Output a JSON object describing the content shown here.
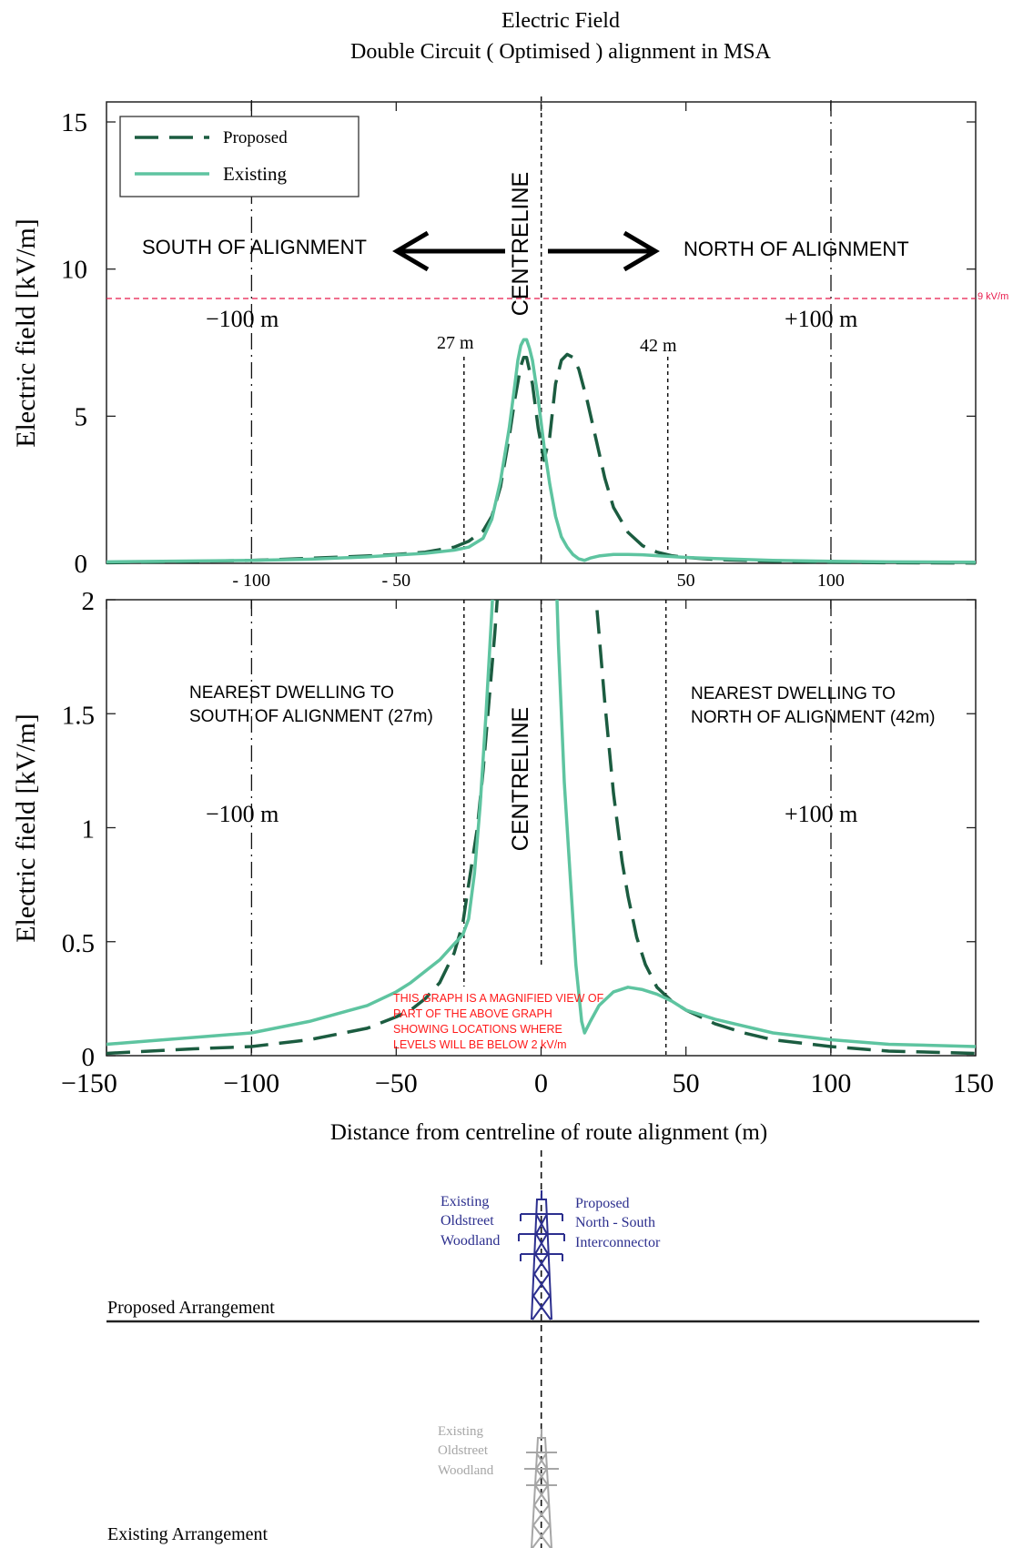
{
  "title": "Electric Field",
  "subtitle": "Double Circuit ( Optimised ) alignment in MSA",
  "colors": {
    "proposed": "#1b5c40",
    "existing": "#5ec4a0",
    "threshold": "#e8194b",
    "annotation_red": "#ff1a1a",
    "tower_blue": "#2c2f8e",
    "tower_grey": "#a6a6a6"
  },
  "icons": {
    "proposed_tower": "transmission-tower-icon",
    "existing_tower": "transmission-tower-icon"
  },
  "chart_data": [
    {
      "type": "line",
      "ylabel": "Electric field [kV/m]",
      "xlim": [
        -150,
        150
      ],
      "ylim": [
        0,
        16
      ],
      "y_ticks": [
        "0",
        "5",
        "10",
        "15"
      ],
      "x_ticks": [
        "- 100",
        "- 50",
        "50",
        "100"
      ],
      "grid": false,
      "legend": "top-left",
      "series": [
        {
          "name": "Proposed",
          "style": "dashed",
          "x": [
            -150,
            -100,
            -80,
            -60,
            -50,
            -40,
            -30,
            -25,
            -20,
            -17,
            -14,
            -11,
            -9,
            -7,
            -6,
            -5,
            -3,
            -1,
            1,
            3,
            5,
            7,
            9,
            11,
            13,
            16,
            19,
            22,
            25,
            30,
            35,
            40,
            45,
            50,
            60,
            80,
            100,
            120,
            150
          ],
          "y": [
            0.02,
            0.1,
            0.17,
            0.25,
            0.3,
            0.38,
            0.55,
            0.75,
            1.1,
            1.6,
            2.6,
            4.3,
            5.6,
            6.7,
            7.0,
            7.0,
            6.1,
            4.6,
            3.5,
            4.3,
            6.1,
            6.9,
            7.1,
            7.0,
            6.6,
            5.5,
            4.2,
            2.9,
            1.9,
            1.05,
            0.6,
            0.38,
            0.26,
            0.2,
            0.13,
            0.07,
            0.04,
            0.02,
            0.01
          ]
        },
        {
          "name": "Existing",
          "style": "solid",
          "x": [
            -150,
            -100,
            -80,
            -60,
            -50,
            -40,
            -30,
            -25,
            -20,
            -17,
            -14,
            -11,
            -9,
            -8,
            -7,
            -6,
            -5,
            -4,
            -3,
            -1,
            1,
            3,
            5,
            7,
            9,
            11,
            13,
            15,
            17,
            20,
            25,
            30,
            35,
            40,
            50,
            60,
            80,
            100,
            120,
            150
          ],
          "y": [
            0.05,
            0.1,
            0.14,
            0.22,
            0.28,
            0.34,
            0.45,
            0.55,
            0.85,
            1.5,
            2.8,
            4.6,
            6.1,
            6.9,
            7.4,
            7.6,
            7.6,
            7.3,
            6.9,
            5.6,
            4.0,
            2.7,
            1.6,
            0.9,
            0.55,
            0.3,
            0.15,
            0.1,
            0.18,
            0.25,
            0.3,
            0.3,
            0.29,
            0.26,
            0.2,
            0.16,
            0.1,
            0.07,
            0.05,
            0.04
          ]
        }
      ],
      "threshold": {
        "value": 9,
        "label": "9 kV/m"
      },
      "annotations": {
        "centreline": "CENTRELINE",
        "south": "SOUTH OF ALIGNMENT",
        "north": "NORTH OF ALIGNMENT",
        "left_100": "−100  m",
        "right_100": "+100  m",
        "dist_27": "27 m",
        "dist_42": "42 m"
      }
    },
    {
      "type": "line",
      "ylabel": "Electric field [kV/m]",
      "xlabel": "Distance from centreline of route alignment (m)",
      "xlim": [
        -150,
        150
      ],
      "ylim": [
        0,
        2
      ],
      "y_ticks": [
        "0",
        "0.5",
        "1",
        "1.5",
        "2"
      ],
      "x_ticks": [
        "−150",
        "−100",
        "−50",
        "0",
        "50",
        "100",
        "150"
      ],
      "grid": false,
      "series": [
        {
          "name": "Proposed",
          "style": "dashed",
          "x": [
            -150,
            -120,
            -100,
            -80,
            -60,
            -50,
            -45,
            -40,
            -35,
            -30,
            -27,
            -25,
            -22,
            -20,
            -18,
            -16,
            -14,
            18,
            19,
            20,
            22,
            25,
            28,
            30,
            33,
            36,
            40,
            45,
            50,
            60,
            70,
            80,
            100,
            120,
            150
          ],
          "y": [
            0.01,
            0.03,
            0.04,
            0.07,
            0.12,
            0.17,
            0.2,
            0.25,
            0.32,
            0.45,
            0.58,
            0.75,
            1.0,
            1.25,
            1.55,
            1.85,
            2.2,
            2.2,
            2.0,
            1.85,
            1.55,
            1.15,
            0.85,
            0.7,
            0.52,
            0.4,
            0.3,
            0.24,
            0.2,
            0.14,
            0.1,
            0.07,
            0.04,
            0.02,
            0.01
          ]
        },
        {
          "name": "Existing",
          "style": "solid",
          "x": [
            -150,
            -120,
            -100,
            -80,
            -60,
            -50,
            -45,
            -40,
            -35,
            -30,
            -27,
            -25,
            -23,
            -21,
            -19,
            -17,
            -16,
            5,
            6,
            8,
            10,
            12,
            14,
            15,
            17,
            20,
            25,
            30,
            35,
            40,
            45,
            50,
            60,
            80,
            100,
            120,
            150
          ],
          "y": [
            0.05,
            0.08,
            0.1,
            0.15,
            0.22,
            0.28,
            0.32,
            0.37,
            0.42,
            0.49,
            0.53,
            0.6,
            0.8,
            1.1,
            1.5,
            1.95,
            2.2,
            2.2,
            1.8,
            1.2,
            0.8,
            0.4,
            0.15,
            0.1,
            0.15,
            0.22,
            0.28,
            0.3,
            0.29,
            0.27,
            0.24,
            0.2,
            0.16,
            0.1,
            0.07,
            0.05,
            0.04
          ]
        }
      ],
      "annotations": {
        "centreline": "CENTRELINE",
        "south_dwelling_line1": "NEAREST DWELLING TO",
        "south_dwelling_line2": "SOUTH OF ALIGNMENT (27m)",
        "north_dwelling_line1": "NEAREST DWELLING TO",
        "north_dwelling_line2": "NORTH OF ALIGNMENT (42m)",
        "left_100": "−100  m",
        "right_100": "+100  m",
        "magnified_note": [
          "THIS GRAPH IS A MAGNIFIED VIEW OF",
          "PART OF THE ABOVE GRAPH",
          "SHOWING LOCATIONS WHERE",
          "LEVELS WILL BE BELOW 2 kV/m"
        ]
      }
    }
  ],
  "arrangements": {
    "proposed": {
      "label": "Proposed Arrangement",
      "left_lines": [
        "Existing",
        "Oldstreet",
        "Woodland"
      ],
      "right_lines": [
        "Proposed",
        "North - South",
        "Interconnector"
      ]
    },
    "existing": {
      "label": "Existing Arrangement",
      "left_lines": [
        "Existing",
        "Oldstreet",
        "Woodland"
      ]
    }
  }
}
